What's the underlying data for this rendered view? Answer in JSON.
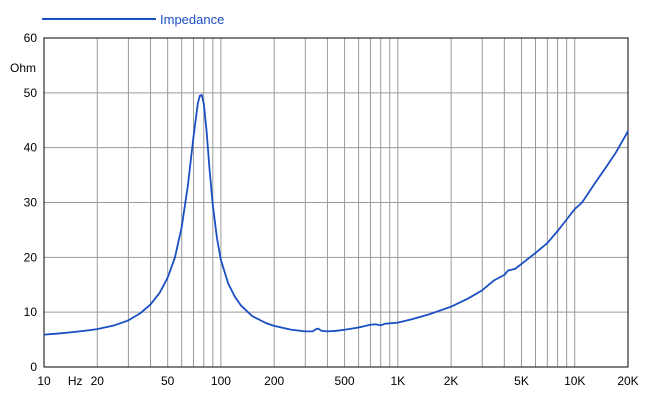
{
  "chart_data": {
    "type": "line",
    "title": "",
    "xlabel": "",
    "ylabel": "Ohm",
    "x_scale": "log",
    "xlim": [
      10,
      20000
    ],
    "ylim": [
      0,
      60
    ],
    "grid": true,
    "legend_position": "top-left",
    "x_tick_labels": [
      {
        "value": 10,
        "label": "10"
      },
      {
        "value": 15,
        "label": "Hz"
      },
      {
        "value": 20,
        "label": "20"
      },
      {
        "value": 50,
        "label": "50"
      },
      {
        "value": 100,
        "label": "100"
      },
      {
        "value": 200,
        "label": "200"
      },
      {
        "value": 500,
        "label": "500"
      },
      {
        "value": 1000,
        "label": "1K"
      },
      {
        "value": 2000,
        "label": "2K"
      },
      {
        "value": 5000,
        "label": "5K"
      },
      {
        "value": 10000,
        "label": "10K"
      },
      {
        "value": 20000,
        "label": "20K"
      }
    ],
    "y_tick_labels": [
      "0",
      "10",
      "20",
      "30",
      "40",
      "50",
      "60"
    ],
    "series": [
      {
        "name": "Impedance",
        "color": "#1a4fc4",
        "points": [
          [
            10,
            5.9
          ],
          [
            12,
            6.1
          ],
          [
            15,
            6.4
          ],
          [
            18,
            6.7
          ],
          [
            20,
            6.9
          ],
          [
            25,
            7.6
          ],
          [
            30,
            8.5
          ],
          [
            35,
            9.8
          ],
          [
            40,
            11.4
          ],
          [
            45,
            13.5
          ],
          [
            50,
            16.3
          ],
          [
            55,
            20.0
          ],
          [
            60,
            25.5
          ],
          [
            65,
            33.0
          ],
          [
            70,
            42.0
          ],
          [
            74,
            48.0
          ],
          [
            76,
            49.5
          ],
          [
            78,
            49.6
          ],
          [
            80,
            48.0
          ],
          [
            83,
            43.0
          ],
          [
            86,
            36.5
          ],
          [
            90,
            29.5
          ],
          [
            95,
            23.5
          ],
          [
            100,
            19.5
          ],
          [
            110,
            15.2
          ],
          [
            120,
            12.8
          ],
          [
            130,
            11.2
          ],
          [
            150,
            9.3
          ],
          [
            180,
            8.0
          ],
          [
            200,
            7.5
          ],
          [
            250,
            6.8
          ],
          [
            300,
            6.5
          ],
          [
            330,
            6.5
          ],
          [
            345,
            6.9
          ],
          [
            355,
            7.0
          ],
          [
            370,
            6.6
          ],
          [
            400,
            6.5
          ],
          [
            450,
            6.6
          ],
          [
            500,
            6.8
          ],
          [
            600,
            7.2
          ],
          [
            700,
            7.7
          ],
          [
            750,
            7.8
          ],
          [
            800,
            7.6
          ],
          [
            850,
            7.9
          ],
          [
            1000,
            8.1
          ],
          [
            1200,
            8.7
          ],
          [
            1500,
            9.6
          ],
          [
            2000,
            11.0
          ],
          [
            2500,
            12.5
          ],
          [
            3000,
            14.0
          ],
          [
            3500,
            15.8
          ],
          [
            4000,
            16.8
          ],
          [
            4200,
            17.6
          ],
          [
            4600,
            17.9
          ],
          [
            5000,
            18.8
          ],
          [
            6000,
            20.8
          ],
          [
            7000,
            22.6
          ],
          [
            8000,
            24.8
          ],
          [
            9000,
            26.9
          ],
          [
            10000,
            28.8
          ],
          [
            11000,
            30.0
          ],
          [
            13000,
            33.5
          ],
          [
            15000,
            36.4
          ],
          [
            17000,
            39.0
          ],
          [
            20000,
            43.0
          ]
        ]
      }
    ]
  }
}
